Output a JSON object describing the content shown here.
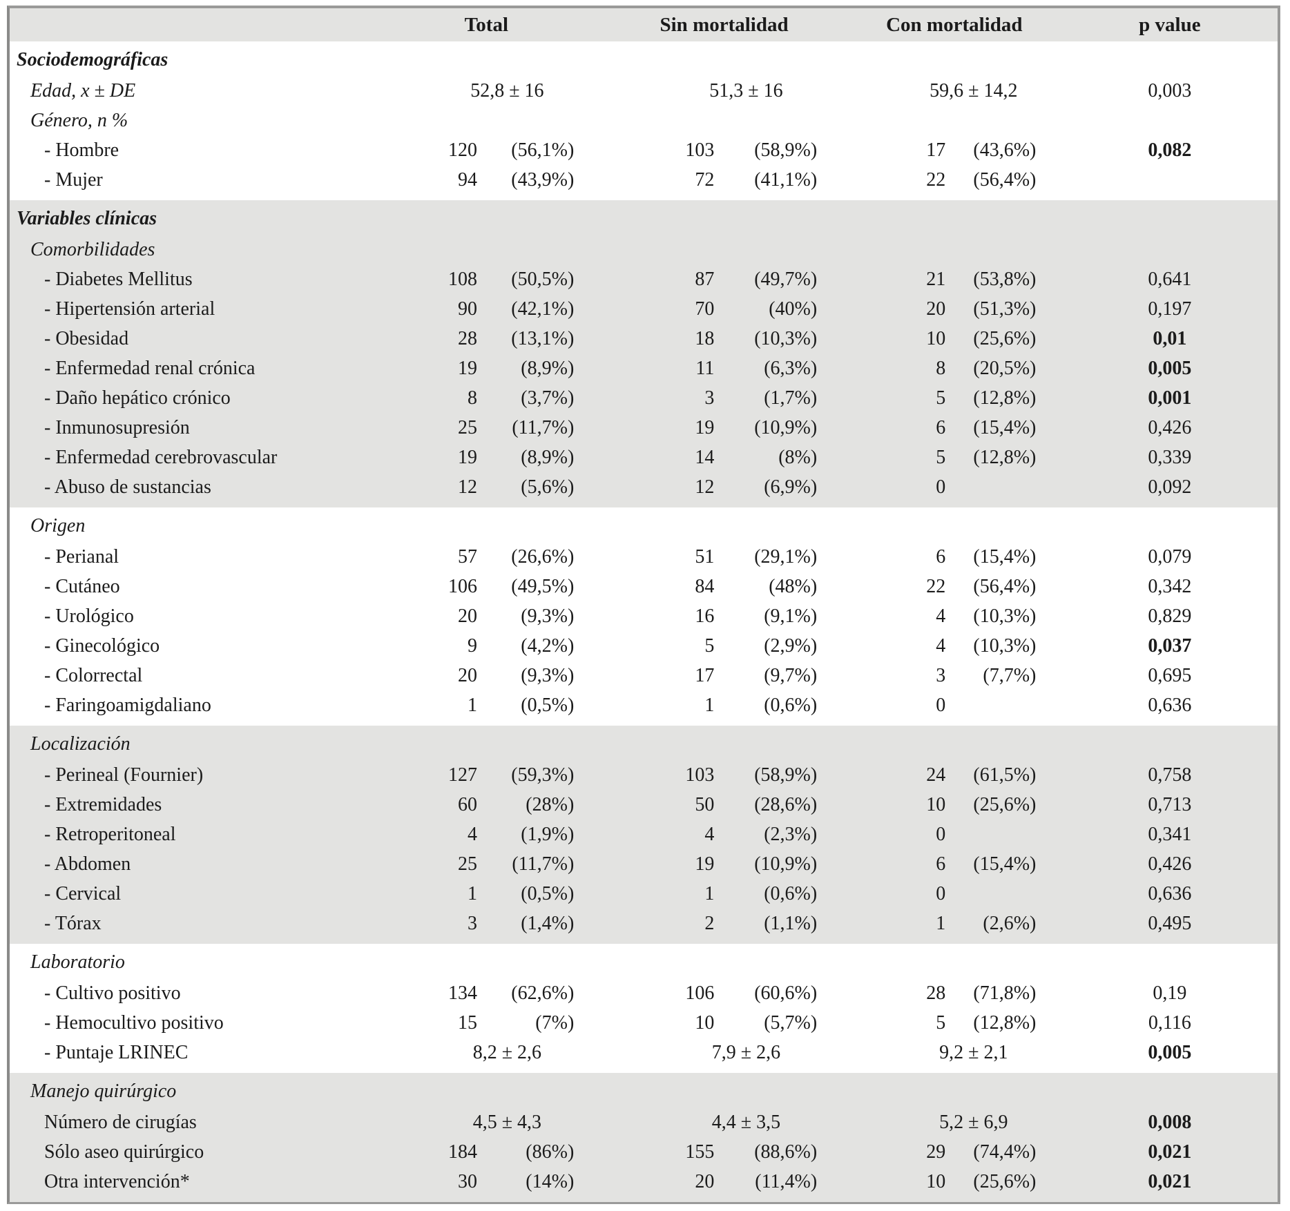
{
  "colors": {
    "shaded_section_bg": "#e3e3e1",
    "white_section_bg": "#ffffff",
    "outer_border": "#9a9a99",
    "outer_border_left": "#8a8a89",
    "text": "#1b1b1b"
  },
  "table": {
    "columns": [
      "",
      "Total",
      "Sin mortalidad",
      "Con mortalidad",
      "p value"
    ],
    "sections": [
      {
        "title": "Sociodemográficas",
        "bold": true,
        "shaded": false,
        "rows": [
          {
            "label": "Edad, x ± DE",
            "italic": true,
            "indent": 1,
            "cells": [
              {
                "c": "52,8 ± 16"
              },
              {
                "c": "51,3 ± 16"
              },
              {
                "c": "59,6 ± 14,2"
              }
            ],
            "p": {
              "text": "0,003",
              "bold": false
            }
          },
          {
            "label": "Género, n %",
            "italic": true,
            "indent": 1,
            "cells": [
              null,
              null,
              null
            ],
            "p": null
          },
          {
            "label": "- Hombre",
            "italic": false,
            "indent": 2,
            "cells": [
              {
                "n": "120",
                "pct": "(56,1%)"
              },
              {
                "n": "103",
                "pct": "(58,9%)"
              },
              {
                "n": "17",
                "pct": "(43,6%)"
              }
            ],
            "p": {
              "text": "0,082",
              "bold": true
            }
          },
          {
            "label": "- Mujer",
            "italic": false,
            "indent": 2,
            "cells": [
              {
                "n": "94",
                "pct": "(43,9%)"
              },
              {
                "n": "72",
                "pct": "(41,1%)"
              },
              {
                "n": "22",
                "pct": "(56,4%)"
              }
            ],
            "p": null
          }
        ]
      },
      {
        "title": "Variables clínicas",
        "bold": true,
        "shaded": true,
        "rows": [
          {
            "label": "Comorbilidades",
            "italic": true,
            "indent": 1,
            "cells": [
              null,
              null,
              null
            ],
            "p": null
          },
          {
            "label": "- Diabetes Mellitus",
            "italic": false,
            "indent": 2,
            "cells": [
              {
                "n": "108",
                "pct": "(50,5%)"
              },
              {
                "n": "87",
                "pct": "(49,7%)"
              },
              {
                "n": "21",
                "pct": "(53,8%)"
              }
            ],
            "p": {
              "text": "0,641",
              "bold": false
            }
          },
          {
            "label": "- Hipertensión arterial",
            "italic": false,
            "indent": 2,
            "cells": [
              {
                "n": "90",
                "pct": "(42,1%)"
              },
              {
                "n": "70",
                "pct": "(40%)"
              },
              {
                "n": "20",
                "pct": "(51,3%)"
              }
            ],
            "p": {
              "text": "0,197",
              "bold": false
            }
          },
          {
            "label": "- Obesidad",
            "italic": false,
            "indent": 2,
            "cells": [
              {
                "n": "28",
                "pct": "(13,1%)"
              },
              {
                "n": "18",
                "pct": "(10,3%)"
              },
              {
                "n": "10",
                "pct": "(25,6%)"
              }
            ],
            "p": {
              "text": "0,01",
              "bold": true
            }
          },
          {
            "label": "- Enfermedad renal crónica",
            "italic": false,
            "indent": 2,
            "cells": [
              {
                "n": "19",
                "pct": "(8,9%)"
              },
              {
                "n": "11",
                "pct": "(6,3%)"
              },
              {
                "n": "8",
                "pct": "(20,5%)"
              }
            ],
            "p": {
              "text": "0,005",
              "bold": true
            }
          },
          {
            "label": "- Daño hepático crónico",
            "italic": false,
            "indent": 2,
            "cells": [
              {
                "n": "8",
                "pct": "(3,7%)"
              },
              {
                "n": "3",
                "pct": "(1,7%)"
              },
              {
                "n": "5",
                "pct": "(12,8%)"
              }
            ],
            "p": {
              "text": "0,001",
              "bold": true
            }
          },
          {
            "label": "- Inmunosupresión",
            "italic": false,
            "indent": 2,
            "cells": [
              {
                "n": "25",
                "pct": "(11,7%)"
              },
              {
                "n": "19",
                "pct": "(10,9%)"
              },
              {
                "n": "6",
                "pct": "(15,4%)"
              }
            ],
            "p": {
              "text": "0,426",
              "bold": false
            }
          },
          {
            "label": "- Enfermedad cerebrovascular",
            "italic": false,
            "indent": 2,
            "cells": [
              {
                "n": "19",
                "pct": "(8,9%)"
              },
              {
                "n": "14",
                "pct": "(8%)"
              },
              {
                "n": "5",
                "pct": "(12,8%)"
              }
            ],
            "p": {
              "text": "0,339",
              "bold": false
            }
          },
          {
            "label": "- Abuso de sustancias",
            "italic": false,
            "indent": 2,
            "cells": [
              {
                "n": "12",
                "pct": "(5,6%)"
              },
              {
                "n": "12",
                "pct": "(6,9%)"
              },
              {
                "n": "0",
                "pct": ""
              }
            ],
            "p": {
              "text": "0,092",
              "bold": false
            }
          }
        ]
      },
      {
        "title": "Origen",
        "bold": false,
        "shaded": false,
        "rows": [
          {
            "label": "- Perianal",
            "italic": false,
            "indent": 2,
            "cells": [
              {
                "n": "57",
                "pct": "(26,6%)"
              },
              {
                "n": "51",
                "pct": "(29,1%)"
              },
              {
                "n": "6",
                "pct": "(15,4%)"
              }
            ],
            "p": {
              "text": "0,079",
              "bold": false
            }
          },
          {
            "label": "- Cutáneo",
            "italic": false,
            "indent": 2,
            "cells": [
              {
                "n": "106",
                "pct": "(49,5%)"
              },
              {
                "n": "84",
                "pct": "(48%)"
              },
              {
                "n": "22",
                "pct": "(56,4%)"
              }
            ],
            "p": {
              "text": "0,342",
              "bold": false
            }
          },
          {
            "label": "- Urológico",
            "italic": false,
            "indent": 2,
            "cells": [
              {
                "n": "20",
                "pct": "(9,3%)"
              },
              {
                "n": "16",
                "pct": "(9,1%)"
              },
              {
                "n": "4",
                "pct": "(10,3%)"
              }
            ],
            "p": {
              "text": "0,829",
              "bold": false
            }
          },
          {
            "label": "- Ginecológico",
            "italic": false,
            "indent": 2,
            "cells": [
              {
                "n": "9",
                "pct": "(4,2%)"
              },
              {
                "n": "5",
                "pct": "(2,9%)"
              },
              {
                "n": "4",
                "pct": "(10,3%)"
              }
            ],
            "p": {
              "text": "0,037",
              "bold": true
            }
          },
          {
            "label": "- Colorrectal",
            "italic": false,
            "indent": 2,
            "cells": [
              {
                "n": "20",
                "pct": "(9,3%)"
              },
              {
                "n": "17",
                "pct": "(9,7%)"
              },
              {
                "n": "3",
                "pct": "(7,7%)"
              }
            ],
            "p": {
              "text": "0,695",
              "bold": false
            }
          },
          {
            "label": "- Faringoamigdaliano",
            "italic": false,
            "indent": 2,
            "cells": [
              {
                "n": "1",
                "pct": "(0,5%)"
              },
              {
                "n": "1",
                "pct": "(0,6%)"
              },
              {
                "n": "0",
                "pct": ""
              }
            ],
            "p": {
              "text": "0,636",
              "bold": false
            }
          }
        ]
      },
      {
        "title": "Localización",
        "bold": false,
        "shaded": true,
        "rows": [
          {
            "label": "- Perineal (Fournier)",
            "italic": false,
            "indent": 2,
            "cells": [
              {
                "n": "127",
                "pct": "(59,3%)"
              },
              {
                "n": "103",
                "pct": "(58,9%)"
              },
              {
                "n": "24",
                "pct": "(61,5%)"
              }
            ],
            "p": {
              "text": "0,758",
              "bold": false
            }
          },
          {
            "label": "- Extremidades",
            "italic": false,
            "indent": 2,
            "cells": [
              {
                "n": "60",
                "pct": "(28%)"
              },
              {
                "n": "50",
                "pct": "(28,6%)"
              },
              {
                "n": "10",
                "pct": "(25,6%)"
              }
            ],
            "p": {
              "text": "0,713",
              "bold": false
            }
          },
          {
            "label": "- Retroperitoneal",
            "italic": false,
            "indent": 2,
            "cells": [
              {
                "n": "4",
                "pct": "(1,9%)"
              },
              {
                "n": "4",
                "pct": "(2,3%)"
              },
              {
                "n": "0",
                "pct": ""
              }
            ],
            "p": {
              "text": "0,341",
              "bold": false
            }
          },
          {
            "label": "- Abdomen",
            "italic": false,
            "indent": 2,
            "cells": [
              {
                "n": "25",
                "pct": "(11,7%)"
              },
              {
                "n": "19",
                "pct": "(10,9%)"
              },
              {
                "n": "6",
                "pct": "(15,4%)"
              }
            ],
            "p": {
              "text": "0,426",
              "bold": false
            }
          },
          {
            "label": "- Cervical",
            "italic": false,
            "indent": 2,
            "cells": [
              {
                "n": "1",
                "pct": "(0,5%)"
              },
              {
                "n": "1",
                "pct": "(0,6%)"
              },
              {
                "n": "0",
                "pct": ""
              }
            ],
            "p": {
              "text": "0,636",
              "bold": false
            }
          },
          {
            "label": "- Tórax",
            "italic": false,
            "indent": 2,
            "cells": [
              {
                "n": "3",
                "pct": "(1,4%)"
              },
              {
                "n": "2",
                "pct": "(1,1%)"
              },
              {
                "n": "1",
                "pct": "(2,6%)"
              }
            ],
            "p": {
              "text": "0,495",
              "bold": false
            }
          }
        ]
      },
      {
        "title": "Laboratorio",
        "bold": false,
        "shaded": false,
        "rows": [
          {
            "label": "- Cultivo positivo",
            "italic": false,
            "indent": 2,
            "cells": [
              {
                "n": "134",
                "pct": "(62,6%)"
              },
              {
                "n": "106",
                "pct": "(60,6%)"
              },
              {
                "n": "28",
                "pct": "(71,8%)"
              }
            ],
            "p": {
              "text": "0,19",
              "bold": false
            }
          },
          {
            "label": "- Hemocultivo positivo",
            "italic": false,
            "indent": 2,
            "cells": [
              {
                "n": "15",
                "pct": "(7%)"
              },
              {
                "n": "10",
                "pct": "(5,7%)"
              },
              {
                "n": "5",
                "pct": "(12,8%)"
              }
            ],
            "p": {
              "text": "0,116",
              "bold": false
            }
          },
          {
            "label": "- Puntaje LRINEC",
            "italic": false,
            "indent": 2,
            "cells": [
              {
                "c": "8,2 ± 2,6"
              },
              {
                "c": "7,9 ± 2,6"
              },
              {
                "c": "9,2 ± 2,1"
              }
            ],
            "p": {
              "text": "0,005",
              "bold": true
            }
          }
        ]
      },
      {
        "title": "Manejo quirúrgico",
        "bold": false,
        "shaded": true,
        "rows": [
          {
            "label": "Número de cirugías",
            "italic": false,
            "indent": 2,
            "cells": [
              {
                "c": "4,5 ± 4,3"
              },
              {
                "c": "4,4 ± 3,5"
              },
              {
                "c": "5,2 ± 6,9"
              }
            ],
            "p": {
              "text": "0,008",
              "bold": true
            }
          },
          {
            "label": "Sólo aseo quirúrgico",
            "italic": false,
            "indent": 2,
            "cells": [
              {
                "n": "184",
                "pct": "(86%)"
              },
              {
                "n": "155",
                "pct": "(88,6%)"
              },
              {
                "n": "29",
                "pct": "(74,4%)"
              }
            ],
            "p": {
              "text": "0,021",
              "bold": true
            }
          },
          {
            "label": "Otra intervención*",
            "italic": false,
            "indent": 2,
            "cells": [
              {
                "n": "30",
                "pct": "(14%)"
              },
              {
                "n": "20",
                "pct": "(11,4%)"
              },
              {
                "n": "10",
                "pct": "(25,6%)"
              }
            ],
            "p": {
              "text": "0,021",
              "bold": true
            }
          }
        ]
      }
    ]
  }
}
